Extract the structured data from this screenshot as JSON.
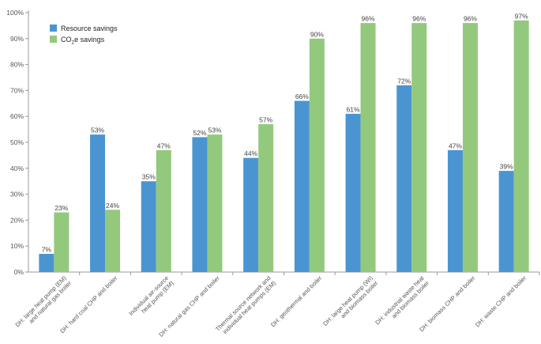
{
  "chart_data": {
    "type": "bar",
    "title": "",
    "xlabel": "",
    "ylabel": "",
    "ylim": [
      0,
      100
    ],
    "y_ticks": [
      "0%",
      "10%",
      "20%",
      "30%",
      "40%",
      "50%",
      "60%",
      "70%",
      "80%",
      "90%",
      "100%"
    ],
    "grid": false,
    "legend_position": "top-left",
    "categories": [
      [
        "DH: large heat pump (EM)",
        "and natural gas boiler"
      ],
      [
        "DH: hard coal CHP and boiler"
      ],
      [
        "Individual air-source",
        "heat pump (EM)"
      ],
      [
        "DH: natural gas CHP and boiler"
      ],
      [
        "Thermal source network and",
        "individual heat pumps (EM)"
      ],
      [
        "DH: geothermal and boiler"
      ],
      [
        "DH: large heat pump (WI)",
        "and biomass boiler"
      ],
      [
        "DH: industrial waste heat",
        "and biomass boiler"
      ],
      [
        "DH: biomass CHP and boiler"
      ],
      [
        "DH: waste CHP and boiler"
      ]
    ],
    "series": [
      {
        "name": "Resource savings",
        "color": "#4a95d1",
        "values": [
          7,
          53,
          35,
          52,
          44,
          66,
          61,
          72,
          47,
          39
        ],
        "labels": [
          "7%",
          "53%",
          "35%",
          "52%",
          "44%",
          "66%",
          "61%",
          "72%",
          "47%",
          "39%"
        ]
      },
      {
        "name": "CO2e savings",
        "name_main": "CO",
        "name_sub": "2",
        "name_rest": "e savings",
        "color": "#93c97c",
        "values": [
          23,
          24,
          47,
          53,
          57,
          90,
          96,
          96,
          96,
          97
        ],
        "labels": [
          "23%",
          "24%",
          "47%",
          "53%",
          "57%",
          "90%",
          "96%",
          "96%",
          "96%",
          "97%"
        ]
      }
    ]
  }
}
